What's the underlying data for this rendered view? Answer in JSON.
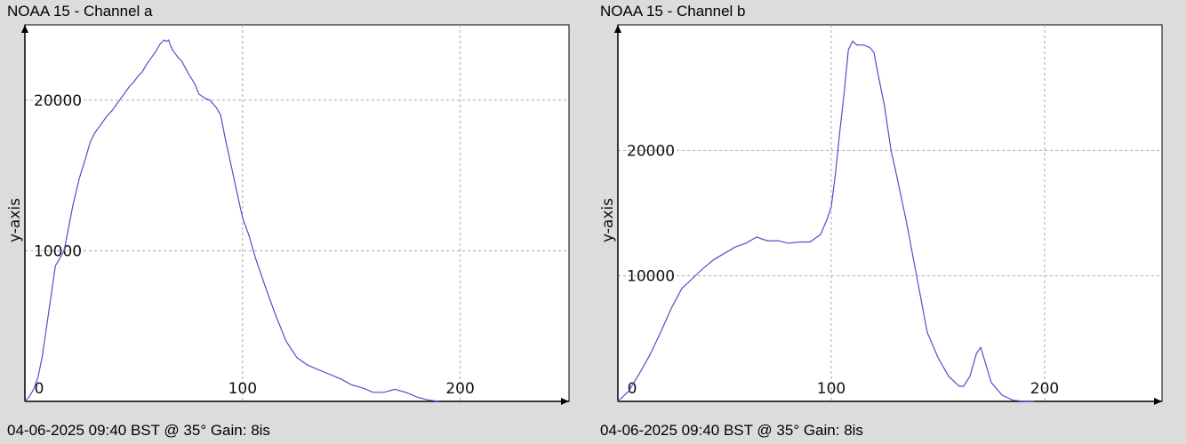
{
  "colors": {
    "background": "#dcdcdc",
    "plot": "#ffffff",
    "line": "#5050c8",
    "grid": "#a8a8a8",
    "axis": "#000000"
  },
  "chart_data": [
    {
      "type": "line",
      "title": "NOAA 15 - Channel a",
      "xlabel": "",
      "ylabel": "y-axis",
      "footer": "04-06-2025 09:40 BST @ 35° Gain: 8is",
      "xlim": [
        0,
        250
      ],
      "ylim": [
        0,
        25000
      ],
      "xticks": [
        0,
        100,
        200
      ],
      "yticks": [
        0,
        10000,
        20000
      ],
      "x_tick_labels": [
        "0",
        "100",
        "200"
      ],
      "y_tick_labels": [
        "10000",
        "20000"
      ],
      "grid": true,
      "series": [
        {
          "x": [
            0,
            2,
            4,
            6,
            8,
            10,
            12,
            14,
            16,
            18,
            20,
            22,
            25,
            28,
            30,
            32,
            35,
            38,
            40,
            42,
            45,
            48,
            50,
            52,
            54,
            56,
            58,
            60,
            62,
            64,
            65,
            66,
            67,
            68,
            70,
            72,
            75,
            78,
            80,
            83,
            85,
            88,
            90,
            92,
            95,
            98,
            100,
            103,
            106,
            110,
            115,
            120,
            125,
            130,
            135,
            140,
            145,
            150,
            155,
            160,
            165,
            170,
            175,
            180,
            185,
            190
          ],
          "y": [
            0,
            300,
            800,
            1600,
            3000,
            5000,
            7000,
            9000,
            9500,
            10000,
            11500,
            13000,
            14800,
            16200,
            17200,
            17800,
            18400,
            19000,
            19300,
            19700,
            20300,
            20900,
            21200,
            21600,
            21900,
            22400,
            22800,
            23200,
            23700,
            24000,
            23900,
            24000,
            23600,
            23300,
            22900,
            22600,
            21800,
            21100,
            20400,
            20100,
            20000,
            19500,
            19000,
            17500,
            15500,
            13500,
            12200,
            11000,
            9500,
            7800,
            5800,
            4000,
            2900,
            2400,
            2100,
            1800,
            1500,
            1100,
            900,
            600,
            600,
            800,
            600,
            300,
            100,
            0
          ]
        }
      ]
    },
    {
      "type": "line",
      "title": "NOAA 15 - Channel b",
      "xlabel": "",
      "ylabel": "y-axis",
      "footer": "04-06-2025 09:40 BST @ 35° Gain: 8is",
      "xlim": [
        0,
        255
      ],
      "ylim": [
        0,
        30000
      ],
      "xticks": [
        0,
        100,
        200
      ],
      "yticks": [
        0,
        10000,
        20000
      ],
      "x_tick_labels": [
        "0",
        "100",
        "200"
      ],
      "y_tick_labels": [
        "10000",
        "20000"
      ],
      "grid": true,
      "series": [
        {
          "x": [
            0,
            5,
            10,
            15,
            20,
            25,
            30,
            35,
            40,
            45,
            50,
            55,
            60,
            65,
            70,
            75,
            80,
            85,
            90,
            95,
            98,
            100,
            102,
            104,
            106,
            108,
            110,
            112,
            115,
            118,
            120,
            122,
            125,
            128,
            130,
            135,
            140,
            145,
            150,
            155,
            160,
            162,
            165,
            168,
            170,
            172,
            175,
            180,
            185,
            190,
            195
          ],
          "y": [
            0,
            800,
            2200,
            3700,
            5500,
            7400,
            9000,
            9800,
            10600,
            11300,
            11800,
            12300,
            12600,
            13100,
            12800,
            12800,
            12600,
            12700,
            12700,
            13300,
            14500,
            15500,
            18200,
            21500,
            24500,
            28000,
            28700,
            28400,
            28400,
            28200,
            27800,
            26000,
            23500,
            20000,
            18500,
            14500,
            10000,
            5500,
            3500,
            2000,
            1200,
            1200,
            2000,
            3800,
            4300,
            3200,
            1500,
            500,
            100,
            0,
            0
          ]
        }
      ]
    }
  ]
}
